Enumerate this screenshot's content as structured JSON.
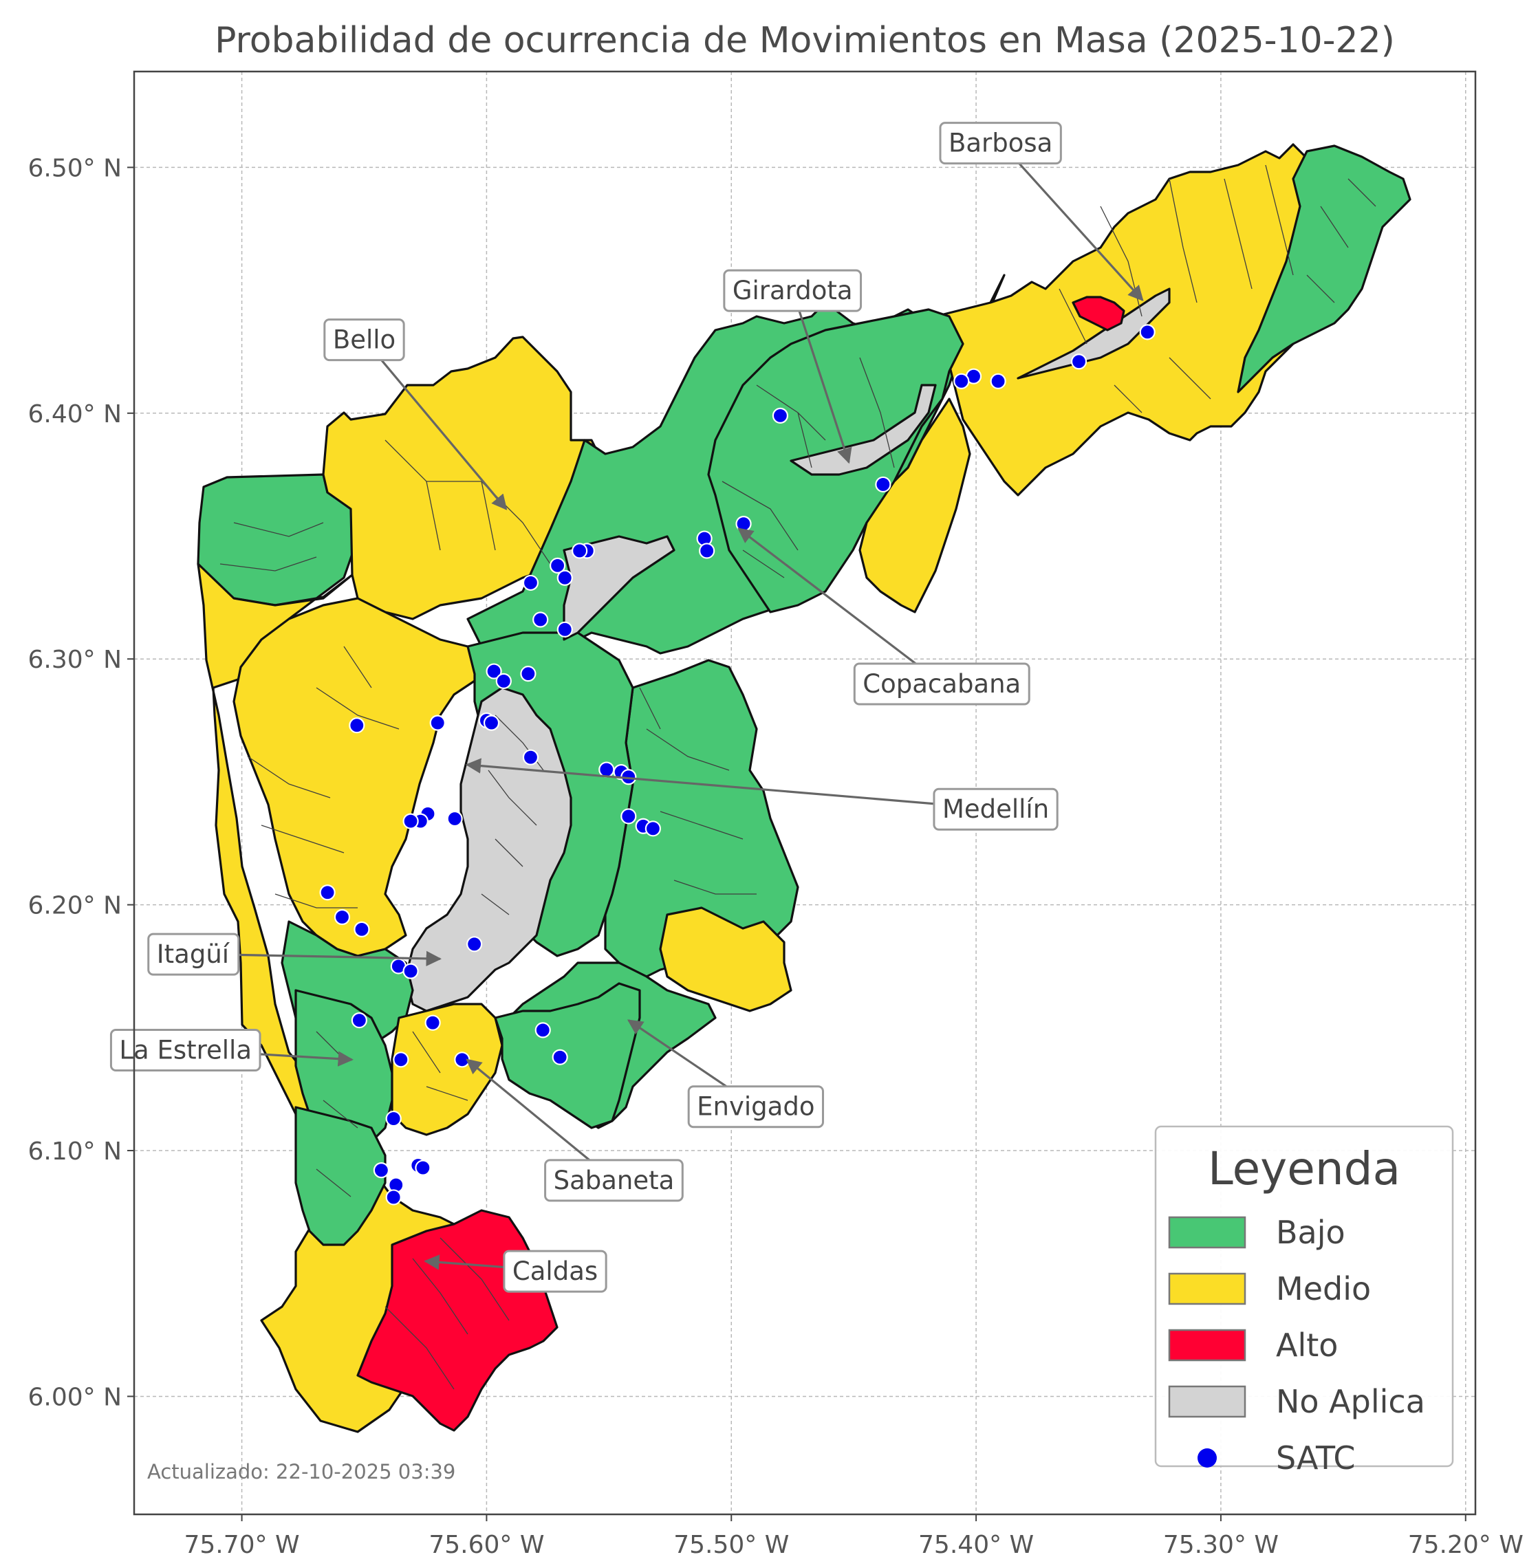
{
  "title": "Probabilidad de ocurrencia de Movimientos en Masa (2025-10-22)",
  "axes": {
    "lon_ticks": [
      {
        "value": -75.7,
        "label": "75.70° W"
      },
      {
        "value": -75.6,
        "label": "75.60° W"
      },
      {
        "value": -75.5,
        "label": "75.50° W"
      },
      {
        "value": -75.4,
        "label": "75.40° W"
      },
      {
        "value": -75.3,
        "label": "75.30° W"
      },
      {
        "value": -75.2,
        "label": "75.20° W"
      }
    ],
    "lat_ticks": [
      {
        "value": 6.0,
        "label": "6.00° N"
      },
      {
        "value": 6.1,
        "label": "6.10° N"
      },
      {
        "value": 6.2,
        "label": "6.20° N"
      },
      {
        "value": 6.3,
        "label": "6.30° N"
      },
      {
        "value": 6.4,
        "label": "6.40° N"
      },
      {
        "value": 6.5,
        "label": "6.50° N"
      }
    ],
    "lon_range": [
      -75.744,
      -75.196
    ],
    "lat_range": [
      5.952,
      6.539
    ],
    "grid": true
  },
  "colors": {
    "bajo": "#48c774",
    "medio": "#fbdd26",
    "alto": "#ff0033",
    "no_aplica": "#d3d3d3",
    "satc": "#0000ee"
  },
  "municipalities": [
    {
      "name": "Barbosa",
      "label_lon": -75.39,
      "label_lat": 6.51,
      "target_lon": -75.332,
      "target_lat": 6.446
    },
    {
      "name": "Girardota",
      "label_lon": -75.475,
      "label_lat": 6.45,
      "target_lon": -75.452,
      "target_lat": 6.38
    },
    {
      "name": "Bello",
      "label_lon": -75.65,
      "label_lat": 6.43,
      "target_lon": -75.592,
      "target_lat": 6.361
    },
    {
      "name": "Copacabana",
      "label_lon": -75.414,
      "label_lat": 6.29,
      "target_lon": -75.497,
      "target_lat": 6.353
    },
    {
      "name": "Medellín",
      "label_lon": -75.392,
      "label_lat": 6.239,
      "target_lon": -75.608,
      "target_lat": 6.257
    },
    {
      "name": "Itagüí",
      "label_lon": -75.72,
      "label_lat": 6.18,
      "target_lon": -75.619,
      "target_lat": 6.178
    },
    {
      "name": "La Estrella",
      "label_lon": -75.723,
      "label_lat": 6.141,
      "target_lon": -75.655,
      "target_lat": 6.137
    },
    {
      "name": "Envigado",
      "label_lon": -75.49,
      "label_lat": 6.118,
      "target_lon": -75.542,
      "target_lat": 6.153
    },
    {
      "name": "Sabaneta",
      "label_lon": -75.548,
      "label_lat": 6.088,
      "target_lon": -75.608,
      "target_lat": 6.137
    },
    {
      "name": "Caldas",
      "label_lon": -75.572,
      "label_lat": 6.051,
      "target_lon": -75.625,
      "target_lat": 6.055
    }
  ],
  "satc_stations": [
    [
      -75.33,
      6.433
    ],
    [
      -75.358,
      6.421
    ],
    [
      -75.391,
      6.413
    ],
    [
      -75.401,
      6.415
    ],
    [
      -75.406,
      6.413
    ],
    [
      -75.438,
      6.371
    ],
    [
      -75.48,
      6.399
    ],
    [
      -75.495,
      6.355
    ],
    [
      -75.511,
      6.349
    ],
    [
      -75.51,
      6.344
    ],
    [
      -75.559,
      6.344
    ],
    [
      -75.562,
      6.344
    ],
    [
      -75.571,
      6.338
    ],
    [
      -75.582,
      6.331
    ],
    [
      -75.568,
      6.333
    ],
    [
      -75.578,
      6.316
    ],
    [
      -75.568,
      6.312
    ],
    [
      -75.597,
      6.295
    ],
    [
      -75.593,
      6.291
    ],
    [
      -75.583,
      6.294
    ],
    [
      -75.62,
      6.274
    ],
    [
      -75.6,
      6.275
    ],
    [
      -75.598,
      6.274
    ],
    [
      -75.653,
      6.273
    ],
    [
      -75.582,
      6.26
    ],
    [
      -75.551,
      6.255
    ],
    [
      -75.545,
      6.254
    ],
    [
      -75.542,
      6.252
    ],
    [
      -75.542,
      6.236
    ],
    [
      -75.536,
      6.232
    ],
    [
      -75.532,
      6.231
    ],
    [
      -75.613,
      6.235
    ],
    [
      -75.624,
      6.237
    ],
    [
      -75.627,
      6.234
    ],
    [
      -75.631,
      6.234
    ],
    [
      -75.665,
      6.205
    ],
    [
      -75.659,
      6.195
    ],
    [
      -75.651,
      6.19
    ],
    [
      -75.605,
      6.184
    ],
    [
      -75.636,
      6.175
    ],
    [
      -75.631,
      6.173
    ],
    [
      -75.652,
      6.153
    ],
    [
      -75.622,
      6.152
    ],
    [
      -75.577,
      6.149
    ],
    [
      -75.57,
      6.138
    ],
    [
      -75.635,
      6.137
    ],
    [
      -75.61,
      6.137
    ],
    [
      -75.638,
      6.113
    ],
    [
      -75.643,
      6.092
    ],
    [
      -75.628,
      6.094
    ],
    [
      -75.626,
      6.093
    ],
    [
      -75.637,
      6.086
    ],
    [
      -75.638,
      6.081
    ]
  ],
  "legend": {
    "title": "Leyenda",
    "items": [
      {
        "label": "Bajo",
        "key": "bajo",
        "kind": "patch"
      },
      {
        "label": "Medio",
        "key": "medio",
        "kind": "patch"
      },
      {
        "label": "Alto",
        "key": "alto",
        "kind": "patch"
      },
      {
        "label": "No Aplica",
        "key": "no_aplica",
        "kind": "patch"
      },
      {
        "label": "SATC",
        "key": "satc",
        "kind": "marker"
      }
    ]
  },
  "footnote": "Actualizado: 22-10-2025 03:39"
}
